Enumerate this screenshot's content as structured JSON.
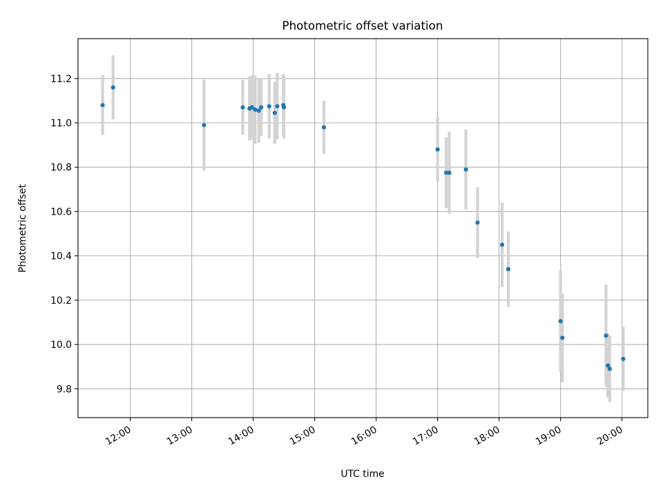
{
  "chart_data": {
    "type": "scatter",
    "title": "Photometric offset variation",
    "xlabel": "UTC time",
    "ylabel": "Photometric offset",
    "x_unit": "hours UTC",
    "xlim": [
      11.15,
      20.42
    ],
    "ylim": [
      9.67,
      11.38
    ],
    "x_ticks": [
      {
        "value": 12,
        "label": "12:00"
      },
      {
        "value": 13,
        "label": "13:00"
      },
      {
        "value": 14,
        "label": "14:00"
      },
      {
        "value": 15,
        "label": "15:00"
      },
      {
        "value": 16,
        "label": "16:00"
      },
      {
        "value": 17,
        "label": "17:00"
      },
      {
        "value": 18,
        "label": "18:00"
      },
      {
        "value": 19,
        "label": "19:00"
      },
      {
        "value": 20,
        "label": "20:00"
      }
    ],
    "y_ticks": [
      {
        "value": 9.8,
        "label": "9.8"
      },
      {
        "value": 10.0,
        "label": "10.0"
      },
      {
        "value": 10.2,
        "label": "10.2"
      },
      {
        "value": 10.4,
        "label": "10.4"
      },
      {
        "value": 10.6,
        "label": "10.6"
      },
      {
        "value": 10.8,
        "label": "10.8"
      },
      {
        "value": 11.0,
        "label": "11.0"
      },
      {
        "value": 11.2,
        "label": "11.2"
      }
    ],
    "grid": true,
    "marker_color": "#1f77b4",
    "errorbar_color": "#d3d3d3",
    "points": [
      {
        "x": 11.55,
        "y": 11.08,
        "err": 0.135
      },
      {
        "x": 11.72,
        "y": 11.16,
        "err": 0.145
      },
      {
        "x": 13.2,
        "y": 10.99,
        "err": 0.205
      },
      {
        "x": 13.83,
        "y": 11.07,
        "err": 0.125
      },
      {
        "x": 13.94,
        "y": 11.065,
        "err": 0.145
      },
      {
        "x": 13.98,
        "y": 11.07,
        "err": 0.145
      },
      {
        "x": 14.03,
        "y": 11.06,
        "err": 0.155
      },
      {
        "x": 14.09,
        "y": 11.055,
        "err": 0.145
      },
      {
        "x": 14.13,
        "y": 11.07,
        "err": 0.13
      },
      {
        "x": 14.26,
        "y": 11.075,
        "err": 0.145
      },
      {
        "x": 14.35,
        "y": 11.045,
        "err": 0.14
      },
      {
        "x": 14.39,
        "y": 11.075,
        "err": 0.15
      },
      {
        "x": 14.49,
        "y": 11.08,
        "err": 0.14
      },
      {
        "x": 14.5,
        "y": 11.07,
        "err": 0.14
      },
      {
        "x": 15.15,
        "y": 10.98,
        "err": 0.12
      },
      {
        "x": 17.0,
        "y": 10.88,
        "err": 0.145
      },
      {
        "x": 17.14,
        "y": 10.775,
        "err": 0.16
      },
      {
        "x": 17.19,
        "y": 10.775,
        "err": 0.185
      },
      {
        "x": 17.46,
        "y": 10.79,
        "err": 0.18
      },
      {
        "x": 17.65,
        "y": 10.55,
        "err": 0.16
      },
      {
        "x": 18.05,
        "y": 10.45,
        "err": 0.19
      },
      {
        "x": 18.15,
        "y": 10.34,
        "err": 0.17
      },
      {
        "x": 19.0,
        "y": 10.105,
        "err": 0.23
      },
      {
        "x": 19.03,
        "y": 10.03,
        "err": 0.2
      },
      {
        "x": 19.74,
        "y": 10.04,
        "err": 0.23
      },
      {
        "x": 19.77,
        "y": 9.905,
        "err": 0.145
      },
      {
        "x": 19.8,
        "y": 9.89,
        "err": 0.15
      },
      {
        "x": 20.02,
        "y": 9.935,
        "err": 0.145
      }
    ]
  }
}
